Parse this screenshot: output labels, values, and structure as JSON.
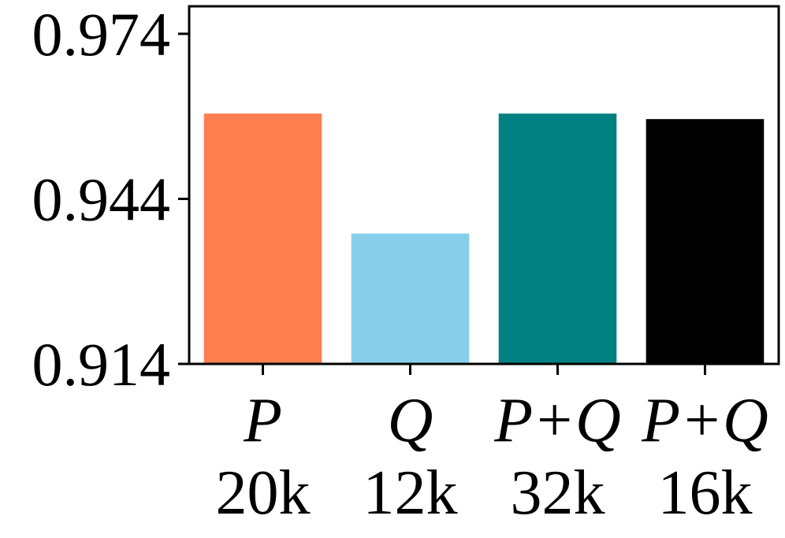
{
  "chart_data": {
    "type": "bar",
    "title": "",
    "xlabel": "",
    "ylabel": "",
    "categories": [
      {
        "label": "P",
        "sublabel": "20k"
      },
      {
        "label": "Q",
        "sublabel": "12k"
      },
      {
        "label": "P+Q",
        "sublabel": "32k"
      },
      {
        "label": "P+Q",
        "sublabel": "16k"
      }
    ],
    "values": [
      0.9595,
      0.9377,
      0.9595,
      0.9585
    ],
    "colors": [
      "#ff7f50",
      "#87ceeb",
      "#008080",
      "#000000"
    ],
    "ylim": [
      0.914,
      0.979
    ],
    "yticks": [
      0.914,
      0.944,
      0.974
    ],
    "ytick_labels": [
      "0.914",
      "0.944",
      "0.974"
    ],
    "grid": false,
    "legend": "none"
  }
}
